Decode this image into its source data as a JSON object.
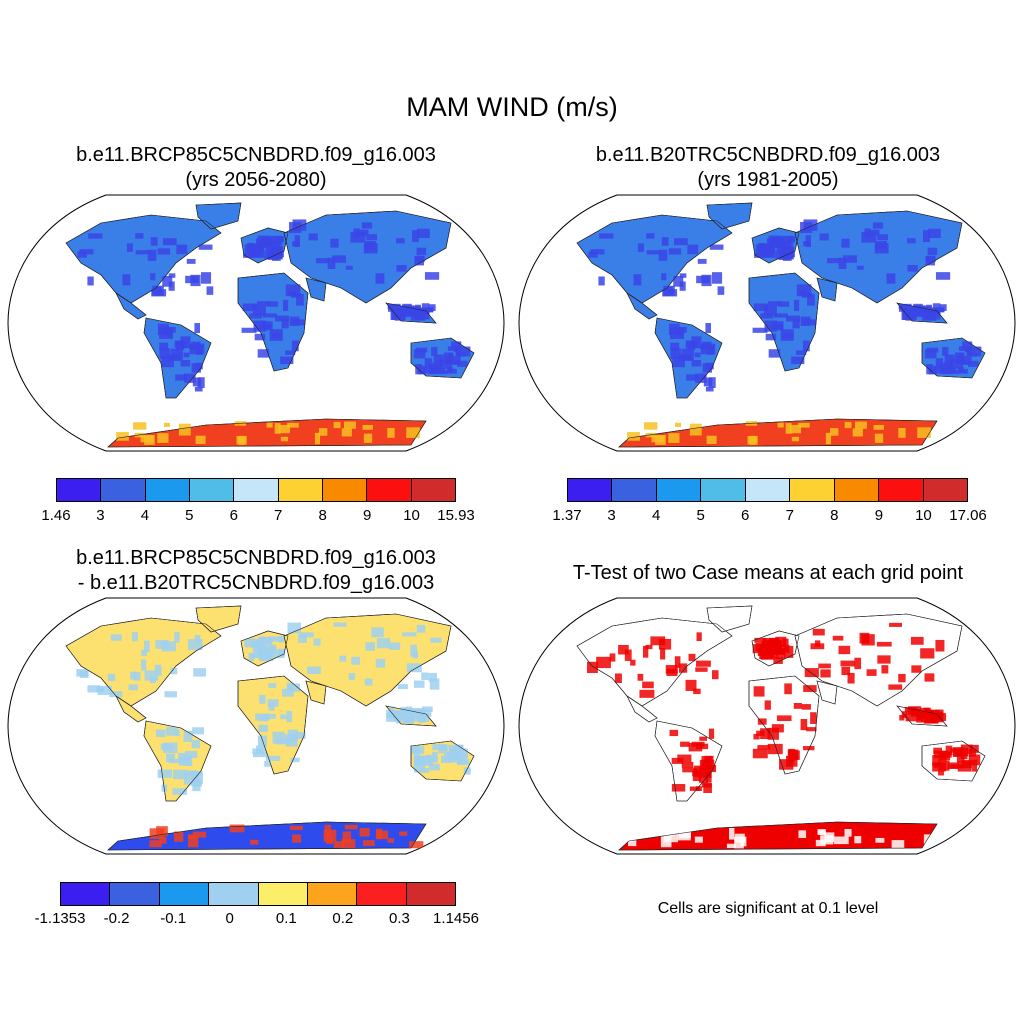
{
  "title": "MAM WIND (m/s)",
  "panels": {
    "top_left": {
      "title_line1": "b.e11.BRCP85C5CNBDRD.f09_g16.003",
      "title_line2": "(yrs 2056-2080)",
      "colorbar": {
        "colors": [
          "#3b1ef0",
          "#3a62e0",
          "#1a99ee",
          "#4fbde8",
          "#c5e6f8",
          "#fcd131",
          "#f98a00",
          "#fb0f0f",
          "#d12b2b"
        ],
        "labels": [
          "1.46",
          "3",
          "4",
          "5",
          "6",
          "7",
          "8",
          "9",
          "10",
          "15.93"
        ]
      }
    },
    "top_right": {
      "title_line1": "b.e11.B20TRC5CNBDRD.f09_g16.003",
      "title_line2": "(yrs 1981-2005)",
      "colorbar": {
        "colors": [
          "#3b1ef0",
          "#3a62e0",
          "#1a99ee",
          "#4fbde8",
          "#c5e6f8",
          "#fcd131",
          "#f98a00",
          "#fb0f0f",
          "#d12b2b"
        ],
        "labels": [
          "1.37",
          "3",
          "4",
          "5",
          "6",
          "7",
          "8",
          "9",
          "10",
          "17.06"
        ]
      }
    },
    "bottom_left": {
      "title_line1": "b.e11.BRCP85C5CNBDRD.f09_g16.003",
      "title_line2": "- b.e11.B20TRC5CNBDRD.f09_g16.003",
      "colorbar": {
        "colors": [
          "#3b1ef0",
          "#3a62e0",
          "#1a99ee",
          "#9fd0f0",
          "#fdee6a",
          "#fca41c",
          "#fb1f1f",
          "#d12b2b"
        ],
        "labels": [
          "-1.1353",
          "-0.2",
          "-0.1",
          "0",
          "0.1",
          "0.2",
          "0.3",
          "1.1456"
        ]
      }
    },
    "bottom_right": {
      "title": "T-Test of two Case means at each grid point",
      "note": "Cells are significant at 0.1 level",
      "sig_color": "#ee0000"
    }
  },
  "map_styles": {
    "top": {
      "ocean": "#ffffff",
      "land": "#3a7ee8",
      "land_alt": "#3b45e6",
      "antarctica": "#f04020",
      "antarctica_alt": "#f8c020"
    },
    "diff": {
      "ocean": "#ffffff",
      "land": "#fce070",
      "land_alt": "#9fd0f0",
      "antarctica": "#2e4bee",
      "antarctica_alt": "#f04020"
    },
    "ttest": {
      "ocean": "#ffffff",
      "land": "#ffffff",
      "land_alt": "#ee0000",
      "antarctica": "#ee0000",
      "antarctica_alt": "#ffffff"
    }
  }
}
